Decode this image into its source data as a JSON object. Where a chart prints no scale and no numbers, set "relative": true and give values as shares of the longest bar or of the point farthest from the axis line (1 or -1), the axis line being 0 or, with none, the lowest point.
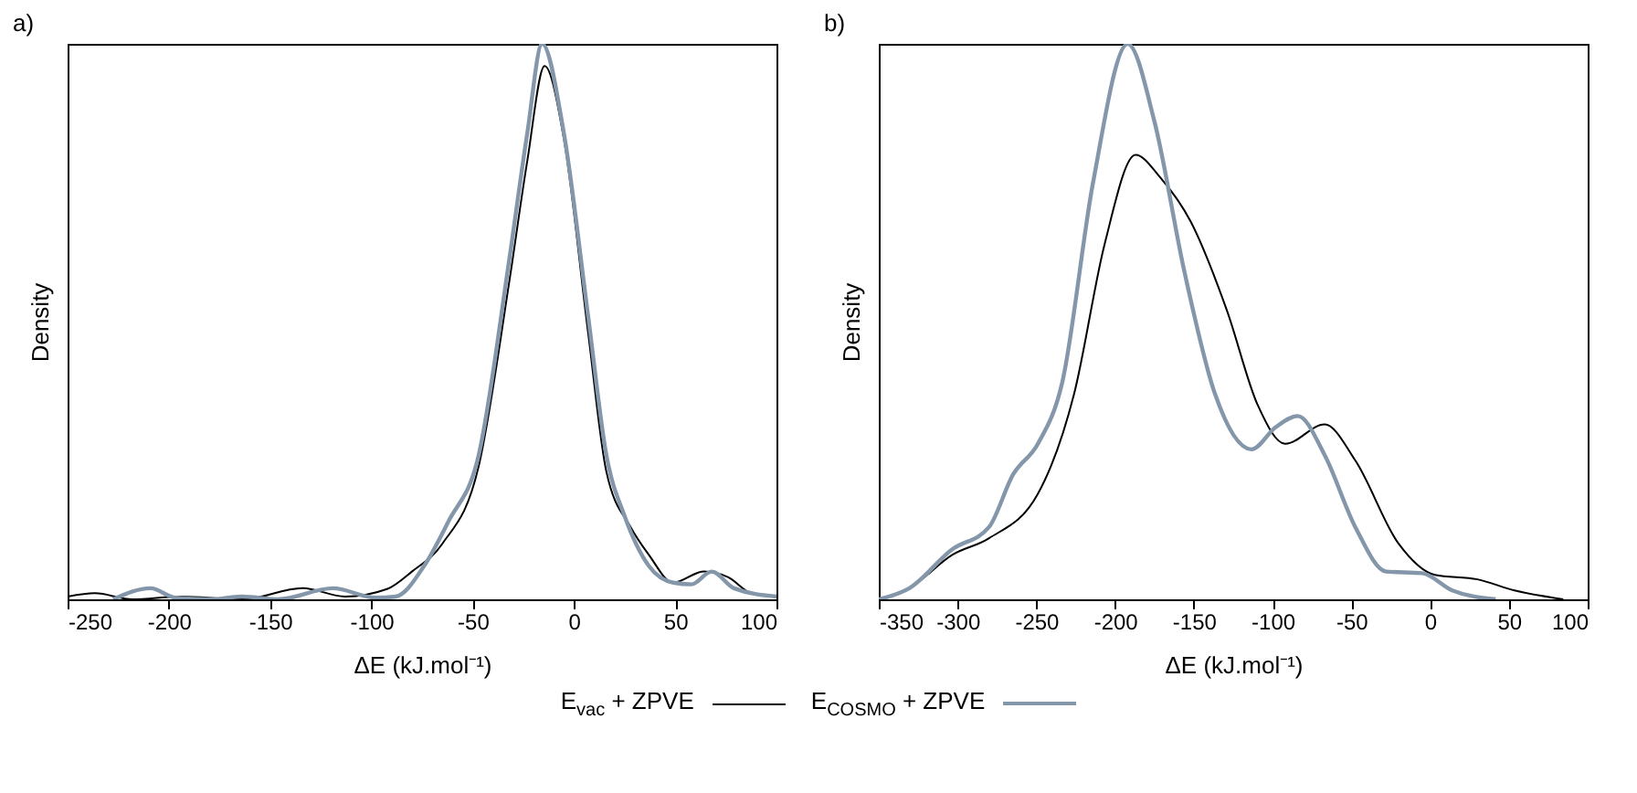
{
  "chart_data": [
    {
      "type": "line",
      "title": "a)",
      "xlabel": "ΔE (kJ.mol⁻¹)",
      "ylabel": "Density",
      "relative": true,
      "xlim": [
        -250,
        100
      ],
      "xticks": [
        -250,
        -200,
        -150,
        -100,
        -50,
        0,
        50,
        100
      ],
      "grid": false,
      "series": [
        {
          "color": "#000000",
          "x": [
            -250,
            -236.5,
            -218,
            -194,
            -164,
            -134,
            -113,
            -92,
            -80,
            -65,
            -47,
            -32,
            -23,
            -14.5,
            -5,
            7,
            16,
            28,
            37,
            49,
            64,
            76,
            88,
            100
          ],
          "values": [
            0.005,
            0.011,
            0,
            0.005,
            0,
            0.02,
            0.005,
            0.019,
            0.05,
            0.1,
            0.24,
            0.57,
            0.79,
            0.96,
            0.83,
            0.48,
            0.23,
            0.13,
            0.08,
            0.03,
            0.05,
            0.04,
            0.01,
            0.005
          ]
        },
        {
          "color": "#8497aa",
          "x": [
            -227.5,
            -209,
            -197,
            -179,
            -164,
            -146,
            -119,
            -98,
            -88,
            -74,
            -62,
            -47,
            -32,
            -23,
            -15.7,
            -5,
            7,
            16,
            25,
            37,
            49,
            58,
            68,
            79,
            100
          ],
          "values": [
            0,
            0.02,
            0.003,
            0,
            0.005,
            0,
            0.02,
            0.003,
            0.005,
            0.06,
            0.14,
            0.26,
            0.61,
            0.84,
            1.0,
            0.84,
            0.51,
            0.26,
            0.15,
            0.06,
            0.03,
            0.027,
            0.05,
            0.02,
            0.005
          ]
        }
      ]
    },
    {
      "type": "line",
      "title": "b)",
      "xlabel": "ΔE (kJ.mol⁻¹)",
      "ylabel": "Density",
      "relative": true,
      "xlim": [
        -350,
        100
      ],
      "xticks": [
        -350,
        -300,
        -250,
        -200,
        -150,
        -100,
        -50,
        0,
        50,
        100
      ],
      "legend": "bottom",
      "grid": false,
      "series": [
        {
          "name": "E$_{vac}$ + ZPVE",
          "color": "#000000",
          "x": [
            -350,
            -330.6,
            -303.4,
            -280,
            -249,
            -226,
            -206.6,
            -187,
            -171.5,
            -152,
            -129,
            -109.5,
            -92,
            -67,
            -47.5,
            -20,
            3,
            30,
            53.5,
            84.5
          ],
          "values": [
            0,
            0.02,
            0.08,
            0.11,
            0.19,
            0.37,
            0.64,
            0.8,
            0.76,
            0.68,
            0.52,
            0.35,
            0.28,
            0.315,
            0.25,
            0.1,
            0.044,
            0.036,
            0.016,
            0
          ]
        },
        {
          "name": "E$_{COSMO}$ + ZPVE",
          "color": "#8497aa",
          "x": [
            -350,
            -330.6,
            -303.4,
            -280,
            -264.7,
            -249,
            -233.6,
            -214,
            -192,
            -175,
            -156,
            -136.6,
            -113.4,
            -98,
            -84,
            -67,
            -47.5,
            -28,
            -5,
            14,
            41.6
          ],
          "values": [
            0,
            0.02,
            0.09,
            0.13,
            0.225,
            0.28,
            0.39,
            0.75,
            1.0,
            0.86,
            0.59,
            0.37,
            0.27,
            0.31,
            0.33,
            0.26,
            0.13,
            0.05,
            0.047,
            0.016,
            0
          ]
        }
      ]
    }
  ]
}
